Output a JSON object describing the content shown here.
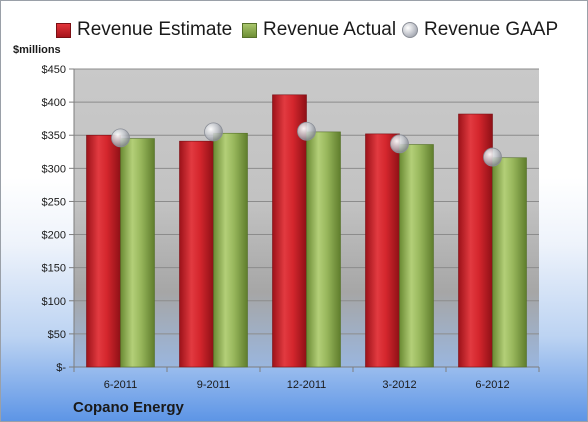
{
  "legend": {
    "estimate": "Revenue Estimate",
    "actual": "Revenue Actual",
    "gaap": "Revenue GAAP"
  },
  "company": "Copano Energy",
  "chart_data": {
    "type": "bar",
    "title": "",
    "ylabel": "$millions",
    "xlabel": "",
    "ylim": [
      0,
      450
    ],
    "yticks": [
      0,
      50,
      100,
      150,
      200,
      250,
      300,
      350,
      400,
      450
    ],
    "ytick_labels": [
      "$-",
      "$50",
      "$100",
      "$150",
      "$200",
      "$250",
      "$300",
      "$350",
      "$400",
      "$450"
    ],
    "categories": [
      "6-2011",
      "9-2011",
      "12-2011",
      "3-2012",
      "6-2012"
    ],
    "series": [
      {
        "name": "Revenue Estimate",
        "kind": "bar",
        "color": "#c8202a",
        "values": [
          350,
          341,
          411,
          352,
          382
        ]
      },
      {
        "name": "Revenue Actual",
        "kind": "bar",
        "color": "#8fae52",
        "values": [
          345,
          353,
          355,
          336,
          316
        ]
      },
      {
        "name": "Revenue GAAP",
        "kind": "marker",
        "color": "#b9bcc4",
        "values": [
          346,
          355,
          356,
          337,
          317
        ]
      }
    ],
    "grid": true,
    "legend_position": "top"
  }
}
